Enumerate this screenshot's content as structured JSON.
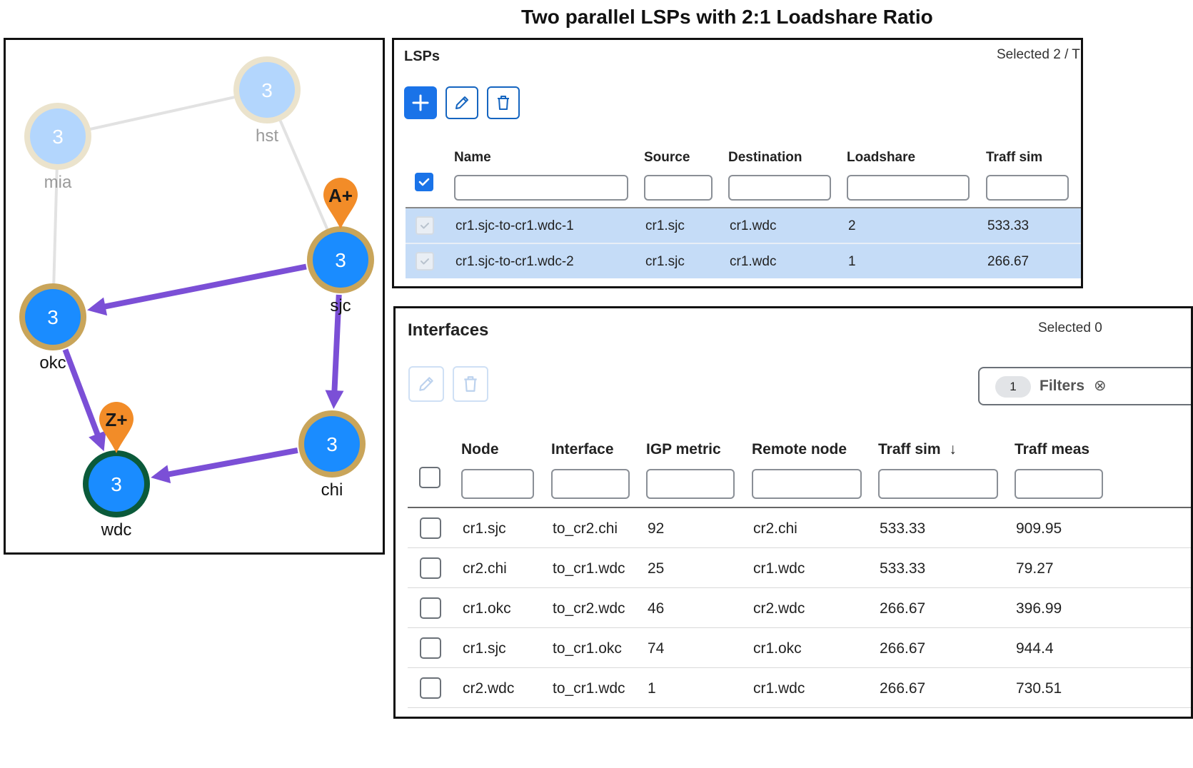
{
  "figure_title": "Two parallel LSPs with 2:1 Loadshare Ratio",
  "graph": {
    "nodes": [
      {
        "id": "mia",
        "label": "mia",
        "value": "3",
        "state": "faded"
      },
      {
        "id": "hst",
        "label": "hst",
        "value": "3",
        "state": "faded"
      },
      {
        "id": "sjc",
        "label": "sjc",
        "value": "3",
        "state": "active"
      },
      {
        "id": "okc",
        "label": "okc",
        "value": "3",
        "state": "active"
      },
      {
        "id": "chi",
        "label": "chi",
        "value": "3",
        "state": "active"
      },
      {
        "id": "wdc",
        "label": "wdc",
        "value": "3",
        "state": "destination"
      }
    ],
    "links": [
      {
        "from": "mia",
        "to": "hst",
        "kind": "plain"
      },
      {
        "from": "hst",
        "to": "sjc",
        "kind": "plain"
      },
      {
        "from": "mia",
        "to": "okc",
        "kind": "plain"
      },
      {
        "from": "sjc",
        "to": "okc",
        "kind": "lsp"
      },
      {
        "from": "sjc",
        "to": "chi",
        "kind": "lsp"
      },
      {
        "from": "okc",
        "to": "wdc",
        "kind": "lsp"
      },
      {
        "from": "chi",
        "to": "wdc",
        "kind": "lsp"
      }
    ],
    "markers": [
      {
        "node": "sjc",
        "label": "A+"
      },
      {
        "node": "wdc",
        "label": "Z+"
      }
    ],
    "colors": {
      "lsp_arrow": "#7b4fd6",
      "node_fill": "#1a8cff",
      "node_ring": "#c9a55a",
      "dest_ring": "#0b5a3a",
      "marker": "#f28c28"
    }
  },
  "lsps": {
    "title": "LSPs",
    "selected_text": "Selected 2 / T",
    "columns": [
      "Name",
      "Source",
      "Destination",
      "Loadshare",
      "Traff sim"
    ],
    "rows": [
      {
        "name": "cr1.sjc-to-cr1.wdc-1",
        "source": "cr1.sjc",
        "destination": "cr1.wdc",
        "loadshare": "2",
        "traff_sim": "533.33"
      },
      {
        "name": "cr1.sjc-to-cr1.wdc-2",
        "source": "cr1.sjc",
        "destination": "cr1.wdc",
        "loadshare": "1",
        "traff_sim": "266.67"
      }
    ]
  },
  "interfaces": {
    "title": "Interfaces",
    "selected_text": "Selected 0",
    "filter_count": "1",
    "filter_label": "Filters",
    "columns": [
      "Node",
      "Interface",
      "IGP metric",
      "Remote node",
      "Traff sim",
      "Traff meas"
    ],
    "sort_indicator": "↓",
    "rows": [
      {
        "node": "cr1.sjc",
        "interface": "to_cr2.chi",
        "igp": "92",
        "remote": "cr2.chi",
        "traff_sim": "533.33",
        "traff_meas": "909.95"
      },
      {
        "node": "cr2.chi",
        "interface": "to_cr1.wdc",
        "igp": "25",
        "remote": "cr1.wdc",
        "traff_sim": "533.33",
        "traff_meas": "79.27"
      },
      {
        "node": "cr1.okc",
        "interface": "to_cr2.wdc",
        "igp": "46",
        "remote": "cr2.wdc",
        "traff_sim": "266.67",
        "traff_meas": "396.99"
      },
      {
        "node": "cr1.sjc",
        "interface": "to_cr1.okc",
        "igp": "74",
        "remote": "cr1.okc",
        "traff_sim": "266.67",
        "traff_meas": "944.4"
      },
      {
        "node": "cr2.wdc",
        "interface": "to_cr1.wdc",
        "igp": "1",
        "remote": "cr1.wdc",
        "traff_sim": "266.67",
        "traff_meas": "730.51"
      }
    ]
  }
}
